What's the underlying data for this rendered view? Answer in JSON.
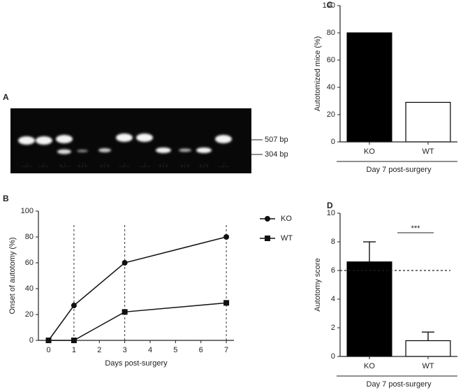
{
  "gel": {
    "panel": "A",
    "lanes": [
      "–/–",
      "–/–",
      "+/–",
      "+/+",
      "+/+",
      "–/–",
      "–/–",
      "+/+",
      "+/+",
      "+/+",
      "–/–"
    ],
    "markers": [
      "507 bp",
      "304 bp"
    ]
  },
  "chart_data": [
    {
      "type": "line",
      "panel": "B",
      "x_label": "Days post-surgery",
      "y_label": "Onset of autotomy (%)",
      "x": [
        0,
        1,
        3,
        7
      ],
      "series": [
        {
          "name": "KO",
          "color": "#111111",
          "marker": "circle",
          "values": [
            0,
            27,
            60,
            80
          ]
        },
        {
          "name": "WT",
          "color": "#111111",
          "marker": "square",
          "values": [
            0,
            0,
            22,
            29
          ]
        }
      ],
      "vlines": [
        1,
        3,
        7
      ],
      "xlim": [
        -0.4,
        7.3
      ],
      "xticks": [
        0,
        1,
        2,
        3,
        4,
        5,
        6,
        7
      ],
      "ylim": [
        0,
        100
      ],
      "yticks": [
        0,
        20,
        40,
        60,
        80,
        100
      ]
    },
    {
      "type": "bar",
      "panel": "C",
      "y_label": "Autotomized mice (%)",
      "x_label": "Day 7 post-surgery",
      "categories": [
        "KO",
        "WT"
      ],
      "values": [
        80,
        29
      ],
      "colors": [
        "#000000",
        "#ffffff"
      ],
      "ylim": [
        0,
        100
      ],
      "yticks": [
        0,
        20,
        40,
        60,
        80,
        100
      ]
    },
    {
      "type": "bar",
      "panel": "D",
      "y_label": "Autotomy score",
      "x_label": "Day 7 post-surgery",
      "categories": [
        "KO",
        "WT"
      ],
      "values": [
        6.6,
        1.1
      ],
      "errors": [
        1.4,
        0.6
      ],
      "colors": [
        "#000000",
        "#ffffff"
      ],
      "hline": 6,
      "significance": "***",
      "ylim": [
        0,
        10
      ],
      "yticks": [
        0,
        2,
        4,
        6,
        8,
        10
      ]
    }
  ]
}
